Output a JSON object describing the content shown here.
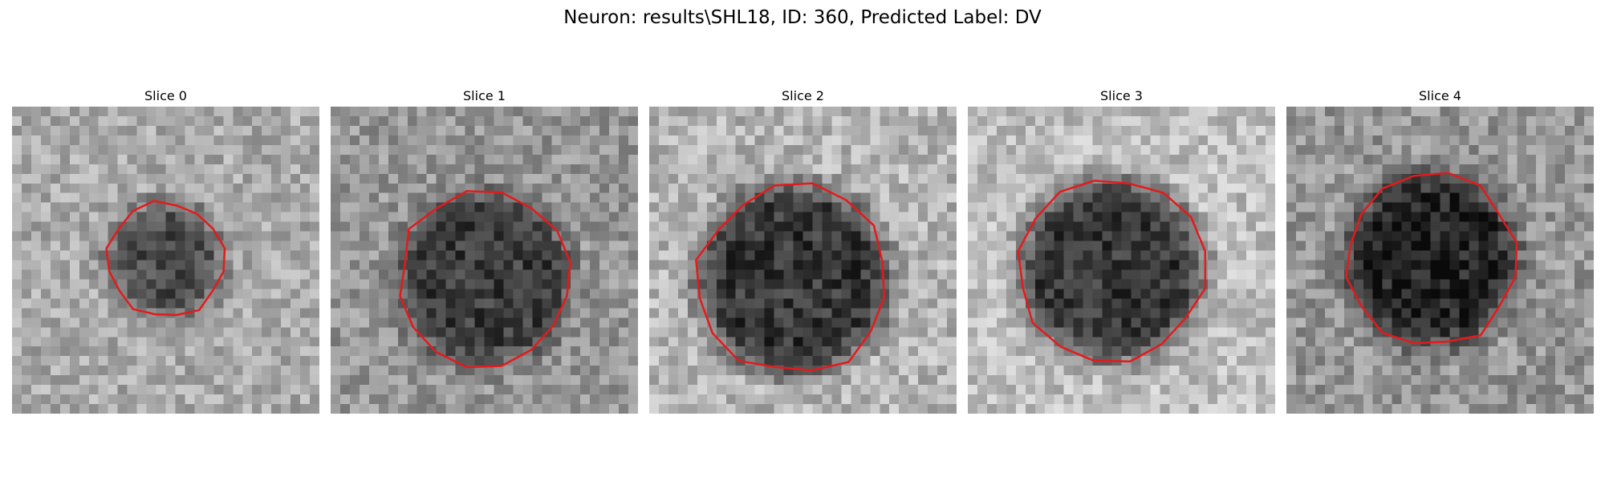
{
  "figure": {
    "title": "Neuron: results\\SHL18, ID: 360, Predicted Label: DV"
  },
  "panels": [
    {
      "title": "Slice 0",
      "seed": 11,
      "cx": 16,
      "cy": 16,
      "r": 5.5,
      "core": 75,
      "bg": 170,
      "noise": 70
    },
    {
      "title": "Slice 1",
      "seed": 23,
      "cx": 16,
      "cy": 18,
      "r": 8.5,
      "core": 60,
      "bg": 150,
      "noise": 70
    },
    {
      "title": "Slice 2",
      "seed": 37,
      "cx": 15,
      "cy": 18,
      "r": 9.5,
      "core": 55,
      "bg": 180,
      "noise": 75
    },
    {
      "title": "Slice 3",
      "seed": 49,
      "cx": 15,
      "cy": 17,
      "r": 9.0,
      "core": 55,
      "bg": 190,
      "noise": 70
    },
    {
      "title": "Slice 4",
      "seed": 61,
      "cx": 15,
      "cy": 16,
      "r": 8.5,
      "core": 35,
      "bg": 150,
      "noise": 75
    }
  ],
  "colors": {
    "contour": "#e41a1c",
    "background": "#ffffff"
  }
}
